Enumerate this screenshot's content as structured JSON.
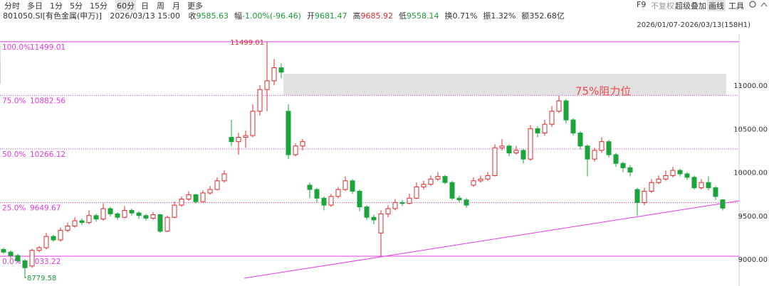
{
  "toolbar": {
    "tabs": [
      "分时",
      "多日",
      "1分",
      "5分",
      "15分",
      "60分",
      "日",
      "周",
      "月",
      "更多"
    ],
    "active_tab_index": 5,
    "tools": [
      "F9",
      "不复权",
      "超级叠加",
      "画线",
      "工具"
    ],
    "active_tool_index": 3
  },
  "quote": {
    "symbol": "801050.SI[有色金属(申万)]",
    "time": "2026/03/13 15:00",
    "fields": [
      {
        "label": "收",
        "value": "9585.63",
        "color": "#1a9a36"
      },
      {
        "label": "幅",
        "value": "-1.00%(-96.46)",
        "color": "#1a9a36"
      },
      {
        "label": "开",
        "value": "9681.47",
        "color": "#1a9a36"
      },
      {
        "label": "高",
        "value": "9685.92",
        "color": "#e0292a"
      },
      {
        "label": "低",
        "value": "9558.14",
        "color": "#1a9a36"
      },
      {
        "label": "换",
        "value": "0.71%",
        "color": "#333333"
      },
      {
        "label": "振",
        "value": "1.32%",
        "color": "#333333"
      },
      {
        "label": "额",
        "value": "352.68亿",
        "color": "#333333"
      }
    ]
  },
  "range": "2026/01/07-2026/03/13(158H1)",
  "chart_data": {
    "type": "candlestick",
    "up_color": "#e0292a",
    "down_color": "#1aa53a",
    "ylim": [
      8690,
      11588
    ],
    "yticks": [
      {
        "value": 9000,
        "label": "9000.00"
      },
      {
        "value": 9500,
        "label": "9500.00"
      },
      {
        "value": 10000,
        "label": "10000.00"
      },
      {
        "value": 10500,
        "label": "10500.00"
      },
      {
        "value": 11000,
        "label": "11000.00"
      }
    ],
    "candles": [
      [
        9110,
        9080,
        9130,
        9060
      ],
      [
        9080,
        9040,
        9100,
        9010
      ],
      [
        9040,
        8980,
        9060,
        8960
      ],
      [
        8980,
        8900,
        9000,
        8779.58
      ],
      [
        8920,
        9100,
        9120,
        8900
      ],
      [
        9100,
        9130,
        9150,
        9080
      ],
      [
        9130,
        9260,
        9300,
        9110
      ],
      [
        9260,
        9220,
        9280,
        9200
      ],
      [
        9220,
        9330,
        9360,
        9200
      ],
      [
        9330,
        9380,
        9420,
        9310
      ],
      [
        9380,
        9440,
        9480,
        9360
      ],
      [
        9440,
        9420,
        9470,
        9390
      ],
      [
        9420,
        9500,
        9560,
        9400
      ],
      [
        9500,
        9460,
        9520,
        9430
      ],
      [
        9460,
        9580,
        9640,
        9440
      ],
      [
        9580,
        9520,
        9600,
        9490
      ],
      [
        9520,
        9480,
        9540,
        9450
      ],
      [
        9480,
        9560,
        9610,
        9470
      ],
      [
        9560,
        9530,
        9580,
        9500
      ],
      [
        9530,
        9500,
        9550,
        9460
      ],
      [
        9500,
        9470,
        9520,
        9440
      ],
      [
        9470,
        9510,
        9540,
        9450
      ],
      [
        9510,
        9320,
        9520,
        9300
      ],
      [
        9320,
        9480,
        9500,
        9310
      ],
      [
        9480,
        9620,
        9660,
        9470
      ],
      [
        9620,
        9690,
        9720,
        9600
      ],
      [
        9690,
        9740,
        9780,
        9670
      ],
      [
        9740,
        9660,
        9750,
        9640
      ],
      [
        9660,
        9760,
        9790,
        9650
      ],
      [
        9760,
        9800,
        9840,
        9740
      ],
      [
        9800,
        9900,
        9940,
        9790
      ],
      [
        9900,
        9980,
        10020,
        9880
      ],
      [
        10400,
        10350,
        10600,
        10300
      ],
      [
        10350,
        10400,
        10450,
        10200
      ],
      [
        10400,
        10420,
        10480,
        10280
      ],
      [
        10420,
        10700,
        10780,
        10400
      ],
      [
        10700,
        10950,
        11000,
        10650
      ],
      [
        10950,
        11050,
        11499.01,
        10700
      ],
      [
        11050,
        11200,
        11300,
        11000
      ],
      [
        11200,
        11150,
        11250,
        11080
      ],
      [
        10700,
        10200,
        10780,
        10150
      ],
      [
        10200,
        10300,
        10330,
        10180
      ],
      [
        10300,
        10350,
        10380,
        10250
      ],
      [
        9850,
        9800,
        9880,
        9700
      ],
      [
        9800,
        9700,
        9820,
        9650
      ],
      [
        9700,
        9620,
        9720,
        9560
      ],
      [
        9620,
        9720,
        9750,
        9600
      ],
      [
        9720,
        9800,
        9830,
        9700
      ],
      [
        9800,
        9900,
        9950,
        9780
      ],
      [
        9900,
        9780,
        9920,
        9750
      ],
      [
        9780,
        9600,
        9800,
        9550
      ],
      [
        9600,
        9480,
        9620,
        9450
      ],
      [
        9480,
        9450,
        9510,
        9400
      ],
      [
        9300,
        9520,
        9560,
        9033.22
      ],
      [
        9520,
        9580,
        9620,
        9480
      ],
      [
        9580,
        9650,
        9690,
        9560
      ],
      [
        9650,
        9640,
        9680,
        9610
      ],
      [
        9640,
        9700,
        9750,
        9630
      ],
      [
        9700,
        9830,
        9880,
        9690
      ],
      [
        9830,
        9860,
        9900,
        9800
      ],
      [
        9860,
        9920,
        9960,
        9840
      ],
      [
        9920,
        9950,
        10000,
        9900
      ],
      [
        9950,
        9880,
        9970,
        9860
      ],
      [
        9880,
        9700,
        9900,
        9680
      ],
      [
        9700,
        9680,
        9730,
        9650
      ],
      [
        9680,
        9620,
        9700,
        9590
      ],
      [
        9850,
        9900,
        9940,
        9830
      ],
      [
        9900,
        9920,
        9960,
        9880
      ],
      [
        9920,
        9960,
        10000,
        9900
      ],
      [
        9960,
        10280,
        10320,
        9950
      ],
      [
        10280,
        10300,
        10380,
        10250
      ],
      [
        10300,
        10220,
        10320,
        10180
      ],
      [
        10220,
        10250,
        10300,
        10200
      ],
      [
        10250,
        10150,
        10270,
        10100
      ],
      [
        10150,
        10500,
        10540,
        10130
      ],
      [
        10500,
        10450,
        10530,
        10400
      ],
      [
        10450,
        10550,
        10600,
        10420
      ],
      [
        10550,
        10700,
        10760,
        10520
      ],
      [
        10700,
        10820,
        10880,
        10680
      ],
      [
        10820,
        10600,
        10840,
        10560
      ],
      [
        10600,
        10450,
        10620,
        10420
      ],
      [
        10450,
        10300,
        10470,
        10260
      ],
      [
        10300,
        10150,
        10320,
        9950
      ],
      [
        10150,
        10250,
        10280,
        10120
      ],
      [
        10250,
        10350,
        10400,
        10220
      ],
      [
        10350,
        10200,
        10370,
        10170
      ],
      [
        10200,
        10100,
        10220,
        10060
      ],
      [
        10100,
        10050,
        10120,
        10000
      ],
      [
        10050,
        10000,
        10080,
        9950
      ],
      [
        9800,
        9650,
        9820,
        9500
      ],
      [
        9650,
        9780,
        9820,
        9620
      ],
      [
        9780,
        9880,
        9920,
        9760
      ],
      [
        9880,
        9920,
        9960,
        9860
      ],
      [
        9920,
        9960,
        10020,
        9900
      ],
      [
        9960,
        10020,
        10060,
        9940
      ],
      [
        10020,
        9980,
        10040,
        9950
      ],
      [
        9980,
        9940,
        10000,
        9910
      ],
      [
        9940,
        9820,
        9960,
        9800
      ],
      [
        9820,
        9880,
        9920,
        9800
      ],
      [
        9880,
        9820,
        9950,
        9790
      ],
      [
        9820,
        9720,
        9840,
        9680
      ],
      [
        9681.47,
        9585.63,
        9685.92,
        9558.14
      ]
    ],
    "fib_levels": [
      {
        "ratio": "100.0%",
        "price": 11499.01
      },
      {
        "ratio": "75.0%",
        "price": 10882.56
      },
      {
        "ratio": "50.0%",
        "price": 10266.12
      },
      {
        "ratio": "25.0%",
        "price": 9649.67
      },
      {
        "ratio": "0.0%",
        "price": 9033.22
      }
    ],
    "fib_color": "#e23be0",
    "max_marker": 11499.01,
    "min_marker": 8779.58,
    "resistance_zone": [
      10882.56,
      11130
    ],
    "annotation": "75%阻力位",
    "annotation_color": "#f0474a",
    "trendline": {
      "x": [
        33.8,
        103.3
      ],
      "y": [
        8780,
        9670
      ]
    }
  }
}
